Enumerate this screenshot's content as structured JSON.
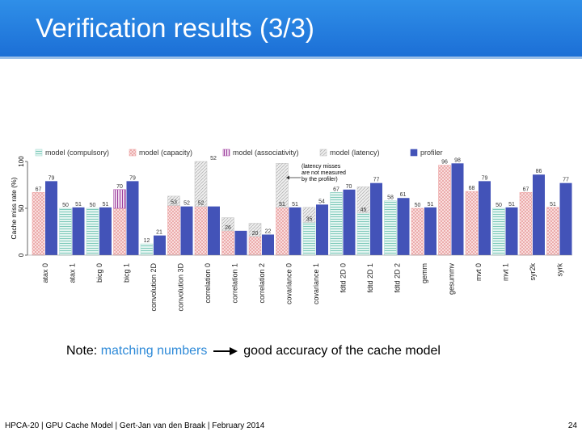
{
  "slide": {
    "title": "Verification results (3/3)",
    "note_prefix": "Note:",
    "note_highlight": "matching numbers",
    "note_suffix": "good accuracy of the cache model",
    "footer": "HPCA-20 | GPU Cache Model | Gert-Jan van den Braak | February 2014",
    "page_number": "24"
  },
  "chart_data": {
    "type": "bar",
    "ylabel": "Cache miss rate (%)",
    "yticks": [
      "0",
      "50",
      "100"
    ],
    "ylim": [
      0,
      100
    ],
    "annotation": "(latency misses are not measured by the profiler)",
    "legend": [
      {
        "key": "compulsory",
        "label": "model (compulsory)"
      },
      {
        "key": "capacity",
        "label": "model (capacity)"
      },
      {
        "key": "associativity",
        "label": "model (associativity)"
      },
      {
        "key": "latency",
        "label": "model (latency)"
      },
      {
        "key": "profiler",
        "label": "profiler"
      }
    ],
    "colors": {
      "compulsory": "#a9ddd3",
      "capacity": "#f0a9a9",
      "associativity": "#b05ab0",
      "latency": "#c8c8c8",
      "profiler": "#4353b8"
    },
    "categories": [
      "atax 0",
      "atax 1",
      "bicg 0",
      "bicg 1",
      "convolution 2D",
      "convolution 3D",
      "correlation 0",
      "correlation 1",
      "correlation 2",
      "covariance 0",
      "covariance 1",
      "fdtd 2D 0",
      "fdtd 2D 1",
      "fdtd 2D 2",
      "gemm",
      "gesummv",
      "mvt 0",
      "mvt 1",
      "syr2k",
      "syrk"
    ],
    "model_stacks": [
      {
        "compulsory": 0,
        "capacity": 67,
        "associativity": 0,
        "latency": 0
      },
      {
        "compulsory": 50,
        "capacity": 0,
        "associativity": 0,
        "latency": 0
      },
      {
        "compulsory": 50,
        "capacity": 0,
        "associativity": 0,
        "latency": 0
      },
      {
        "compulsory": 0,
        "capacity": 50,
        "associativity": 20,
        "latency": 0
      },
      {
        "compulsory": 12,
        "capacity": 0,
        "associativity": 0,
        "latency": 0
      },
      {
        "compulsory": 0,
        "capacity": 53,
        "associativity": 0,
        "latency": 10
      },
      {
        "compulsory": 0,
        "capacity": 52,
        "associativity": 0,
        "latency": 48
      },
      {
        "compulsory": 0,
        "capacity": 26,
        "associativity": 0,
        "latency": 14
      },
      {
        "compulsory": 0,
        "capacity": 20,
        "associativity": 0,
        "latency": 14
      },
      {
        "compulsory": 0,
        "capacity": 51,
        "associativity": 0,
        "latency": 47
      },
      {
        "compulsory": 35,
        "capacity": 0,
        "associativity": 0,
        "latency": 16
      },
      {
        "compulsory": 67,
        "capacity": 0,
        "associativity": 0,
        "latency": 0
      },
      {
        "compulsory": 45,
        "capacity": 0,
        "associativity": 0,
        "latency": 28
      },
      {
        "compulsory": 58,
        "capacity": 0,
        "associativity": 0,
        "latency": 0
      },
      {
        "compulsory": 0,
        "capacity": 50,
        "associativity": 0,
        "latency": 0
      },
      {
        "compulsory": 0,
        "capacity": 96,
        "associativity": 0,
        "latency": 0
      },
      {
        "compulsory": 0,
        "capacity": 68,
        "associativity": 0,
        "latency": 0
      },
      {
        "compulsory": 50,
        "capacity": 0,
        "associativity": 0,
        "latency": 0
      },
      {
        "compulsory": 0,
        "capacity": 67,
        "associativity": 0,
        "latency": 0
      },
      {
        "compulsory": 0,
        "capacity": 51,
        "associativity": 0,
        "latency": 0
      }
    ],
    "model_labels": [
      "67",
      "50",
      "50",
      "70",
      "12",
      "53",
      "52",
      "26",
      "20",
      "51",
      "35",
      "67",
      "45",
      "58",
      "50",
      "96",
      "68",
      "50",
      "67",
      "51"
    ],
    "extra_model_labels": [
      {
        "index": 4,
        "text": "21"
      },
      {
        "index": 6,
        "text": "52"
      },
      {
        "index": 10,
        "text": "54"
      },
      {
        "index": 11,
        "text": "70"
      },
      {
        "index": 13,
        "text": "61"
      }
    ],
    "profiler": [
      79,
      51,
      51,
      79,
      21,
      52,
      52,
      26,
      22,
      51,
      54,
      70,
      77,
      61,
      51,
      98,
      79,
      51,
      86,
      77
    ],
    "profiler_labels": [
      "79",
      "51",
      "51",
      "79",
      "",
      "52",
      "",
      "",
      "22",
      "51",
      "",
      "",
      "77",
      "",
      "51",
      "98",
      "79",
      "51",
      "86",
      "77"
    ]
  }
}
